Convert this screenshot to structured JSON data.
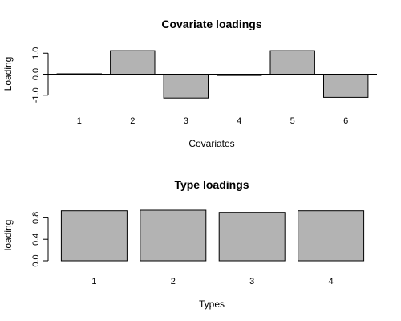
{
  "chart_data": [
    {
      "type": "bar",
      "title": "Covariate loadings",
      "xlabel": "Covariates",
      "ylabel": "Loading",
      "categories": [
        "1",
        "2",
        "3",
        "4",
        "5",
        "6"
      ],
      "values": [
        0.02,
        1.12,
        -1.13,
        -0.06,
        1.12,
        -1.1
      ],
      "ylim": [
        -1.2,
        1.2
      ],
      "yticks": [
        "1.0",
        "0.0",
        "-1.0"
      ],
      "ytick_values": [
        1.0,
        0.0,
        -1.0
      ],
      "zero_line": true,
      "grid": false
    },
    {
      "type": "bar",
      "title": "Type loadings",
      "xlabel": "Types",
      "ylabel": "loading",
      "categories": [
        "1",
        "2",
        "3",
        "4"
      ],
      "values": [
        0.93,
        0.94,
        0.9,
        0.93
      ],
      "ylim": [
        0,
        1.0
      ],
      "yticks": [
        "0.0",
        "0.4",
        "0.8"
      ],
      "ytick_values": [
        0.0,
        0.4,
        0.8
      ],
      "zero_line": false,
      "grid": false
    }
  ]
}
